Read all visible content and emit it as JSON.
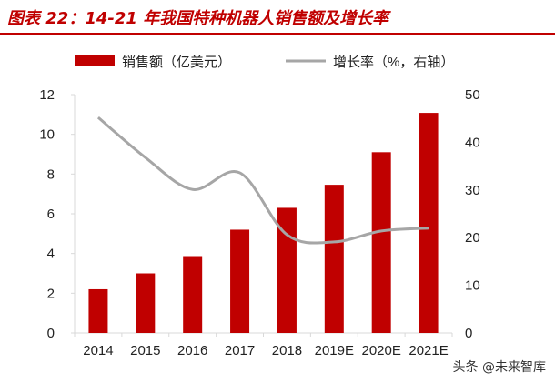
{
  "title": "图表 22：14-21 年我国特种机器人销售额及增长率",
  "watermark": "头条 @未来智库",
  "chart_data": {
    "type": "bar",
    "title": "图表 22：14-21 年我国特种机器人销售额及增长率",
    "categories": [
      "2014",
      "2015",
      "2016",
      "2017",
      "2018",
      "2019E",
      "2020E",
      "2021E"
    ],
    "series": [
      {
        "name": "销售额（亿美元）",
        "type": "bar",
        "axis": "left",
        "color": "#c00000",
        "values": [
          2.2,
          3.0,
          3.87,
          5.2,
          6.3,
          7.46,
          9.1,
          11.08
        ]
      },
      {
        "name": "增长率（%，右轴）",
        "type": "line",
        "axis": "right",
        "color": "#a6a6a6",
        "values": [
          45.2,
          36.8,
          30.1,
          33.6,
          20.6,
          19.1,
          21.4,
          22.0
        ]
      }
    ],
    "ylim": [
      0,
      12
    ],
    "yticks": [
      0,
      2,
      4,
      6,
      8,
      10,
      12
    ],
    "y2lim": [
      0,
      50
    ],
    "y2ticks": [
      0,
      10,
      20,
      30,
      40,
      50
    ],
    "legend": "top",
    "grid": false
  }
}
